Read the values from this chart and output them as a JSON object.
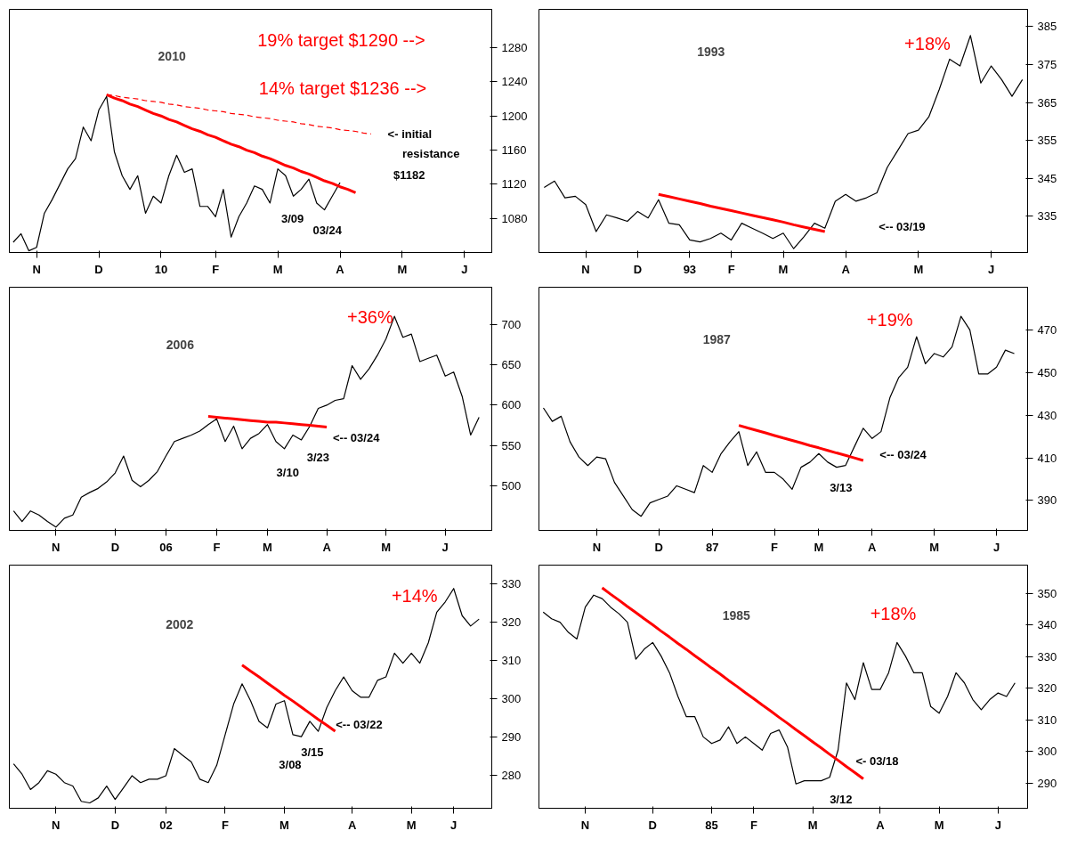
{
  "chart_data": [
    {
      "type": "line",
      "title": "2010",
      "ylim": [
        1040,
        1325
      ],
      "yticks": [
        1080,
        1120,
        1160,
        1200,
        1240,
        1280
      ],
      "categories": [
        null,
        null,
        null,
        "N",
        null,
        null,
        null,
        null,
        null,
        null,
        null,
        "D",
        null,
        null,
        null,
        null,
        null,
        null,
        null,
        "10",
        null,
        null,
        null,
        null,
        null,
        null,
        "F",
        null,
        null,
        null,
        null,
        null,
        null,
        null,
        "M",
        null,
        null,
        null,
        null,
        null,
        null,
        null,
        "A",
        null,
        null,
        null,
        null,
        null,
        null,
        null,
        "M",
        null,
        null,
        null,
        null,
        null,
        null,
        null,
        "J",
        null,
        null,
        null
      ],
      "series": [
        {
          "color": "#000000",
          "values": [
            1052,
            1062,
            1042,
            1046,
            1086,
            1102,
            1120,
            1138,
            1150,
            1187,
            1171,
            1207,
            1223,
            1158,
            1130,
            1114,
            1130,
            1086,
            1106,
            1098,
            1130,
            1154,
            1134,
            1138,
            1094,
            1094,
            1082,
            1114,
            1058,
            1082,
            1098,
            1118,
            1114,
            1098,
            1138,
            1130,
            1106,
            1114,
            1126,
            1098,
            1090,
            1106,
            1122,
            null,
            null,
            null,
            null,
            null,
            null,
            null,
            null,
            null,
            null,
            null,
            null,
            null,
            null,
            null,
            null,
            null,
            null,
            null
          ]
        },
        {
          "color": "#ff0000",
          "values": [
            null,
            null,
            null,
            null,
            null,
            null,
            null,
            null,
            null,
            null,
            null,
            null,
            1225,
            1221,
            1218,
            1214,
            1211,
            1207,
            1203,
            1200,
            1196,
            1193,
            1189,
            1185,
            1182,
            1178,
            1175,
            1171,
            1167,
            1164,
            1160,
            1157,
            1153,
            1150,
            1146,
            1142,
            1139,
            1135,
            1132,
            1128,
            1124,
            1121,
            1117,
            1114,
            1110,
            null,
            null,
            null,
            null,
            null,
            null,
            null,
            null,
            null,
            null,
            null,
            null,
            null,
            null,
            null,
            null,
            null
          ]
        },
        {
          "color": "#ff0000",
          "line_style": "dashed",
          "values": [
            null,
            null,
            null,
            null,
            null,
            null,
            null,
            null,
            null,
            null,
            null,
            null,
            1225,
            1224,
            1222,
            1221,
            1220,
            1218,
            1217,
            1216,
            1214,
            1213,
            1211,
            1210,
            1209,
            1207,
            1206,
            1205,
            1203,
            1202,
            1201,
            1199,
            1198,
            1197,
            1195,
            1194,
            1193,
            1191,
            1190,
            1188,
            1187,
            1186,
            1184,
            1183,
            1182,
            1180,
            1179,
            null,
            null,
            null,
            null,
            null,
            null,
            null,
            null,
            null,
            null,
            null,
            null,
            null,
            null,
            null
          ]
        }
      ],
      "annotations": [
        "19% target $1290 -->",
        "14% target $1236 -->",
        "<- initial",
        "resistance",
        "$1182",
        "3/09",
        "03/24"
      ]
    },
    {
      "type": "line",
      "title": "1993",
      "ylim": [
        325.5,
        389.5
      ],
      "yticks": [
        335,
        345,
        355,
        365,
        375,
        385
      ],
      "categories": [
        null,
        null,
        null,
        null,
        "N",
        null,
        null,
        null,
        null,
        "D",
        null,
        null,
        null,
        null,
        "93",
        null,
        null,
        null,
        "F",
        null,
        null,
        null,
        null,
        "M",
        null,
        null,
        null,
        null,
        null,
        "A",
        null,
        null,
        null,
        null,
        null,
        null,
        "M",
        null,
        null,
        null,
        null,
        null,
        null,
        "J",
        null,
        null,
        null
      ],
      "series": [
        {
          "color": "#000000",
          "values": [
            342.6,
            344.3,
            339.9,
            340.3,
            338.1,
            331.0,
            335.4,
            334.6,
            333.7,
            336.3,
            334.6,
            339.4,
            333.2,
            332.8,
            328.8,
            328.3,
            329.2,
            330.6,
            328.8,
            333.2,
            331.9,
            330.6,
            329.2,
            330.6,
            326.5,
            329.7,
            333.2,
            331.9,
            339.0,
            340.8,
            339.0,
            339.9,
            341.2,
            347.9,
            352.3,
            356.8,
            357.7,
            361.2,
            368.4,
            376.4,
            374.6,
            382.6,
            370.1,
            374.6,
            371.0,
            366.6,
            371.0
          ]
        },
        {
          "color": "#ff0000",
          "values": [
            null,
            null,
            null,
            null,
            null,
            null,
            null,
            null,
            null,
            null,
            null,
            340.8,
            340.2,
            339.6,
            339.0,
            338.4,
            337.7,
            337.1,
            336.5,
            335.9,
            335.3,
            334.7,
            334.1,
            333.5,
            332.8,
            332.2,
            331.6,
            331.0,
            null,
            null,
            null,
            null,
            null,
            null,
            null,
            null,
            null,
            null,
            null,
            null,
            null,
            null,
            null,
            null,
            null,
            null,
            null
          ]
        }
      ],
      "annotations": [
        "+18%",
        "<-- 03/19"
      ]
    },
    {
      "type": "line",
      "title": "2006",
      "ylim": [
        445,
        746
      ],
      "yticks": [
        500,
        550,
        600,
        650,
        700
      ],
      "categories": [
        null,
        null,
        null,
        null,
        null,
        "N",
        null,
        null,
        null,
        null,
        null,
        null,
        "D",
        null,
        null,
        null,
        null,
        null,
        "06",
        null,
        null,
        null,
        null,
        null,
        "F",
        null,
        null,
        null,
        null,
        null,
        "M",
        null,
        null,
        null,
        null,
        null,
        null,
        "A",
        null,
        null,
        null,
        null,
        null,
        null,
        "M",
        null,
        null,
        null,
        null,
        null,
        null,
        "J",
        null,
        null,
        null,
        null,
        null
      ],
      "series": [
        {
          "color": "#000000",
          "values": [
            469,
            456,
            469,
            464,
            456,
            449,
            460,
            464,
            486,
            492,
            497,
            505,
            516,
            537,
            507,
            499,
            507,
            518,
            537,
            555,
            559,
            563,
            568,
            576,
            583,
            555,
            574,
            546,
            559,
            565,
            576,
            555,
            546,
            563,
            557,
            574,
            596,
            600,
            606,
            608,
            649,
            632,
            645,
            662,
            682,
            710,
            684,
            688,
            654,
            658,
            662,
            636,
            641,
            611,
            563,
            585,
            null
          ]
        },
        {
          "color": "#ff0000",
          "values": [
            null,
            null,
            null,
            null,
            null,
            null,
            null,
            null,
            null,
            null,
            null,
            null,
            null,
            null,
            null,
            null,
            null,
            null,
            null,
            null,
            null,
            null,
            null,
            586,
            585,
            584,
            583,
            582,
            581,
            580,
            579,
            579,
            578,
            577,
            576,
            575,
            574,
            573,
            null,
            null,
            null,
            null,
            null,
            null,
            null,
            null,
            null,
            null,
            null,
            null,
            null,
            null,
            null,
            null,
            null,
            null,
            null
          ]
        }
      ],
      "annotations": [
        "+36%",
        "<-- 03/24",
        "3/23",
        "3/10"
      ]
    },
    {
      "type": "line",
      "title": "1987",
      "ylim": [
        376,
        490
      ],
      "yticks": [
        390,
        410,
        430,
        450,
        470
      ],
      "categories": [
        null,
        null,
        null,
        null,
        null,
        null,
        "N",
        null,
        null,
        null,
        null,
        null,
        null,
        "D",
        null,
        null,
        null,
        null,
        null,
        "87",
        null,
        null,
        null,
        null,
        null,
        null,
        "F",
        null,
        null,
        null,
        null,
        "M",
        null,
        null,
        null,
        null,
        null,
        "A",
        null,
        null,
        null,
        null,
        null,
        null,
        "M",
        null,
        null,
        null,
        null,
        null,
        null,
        "J",
        null,
        null,
        null
      ],
      "series": [
        {
          "color": "#000000",
          "values": [
            433.4,
            427.1,
            429.5,
            417.5,
            410.4,
            406.4,
            410.4,
            409.6,
            398.5,
            392.1,
            385.7,
            382.6,
            388.9,
            390.5,
            392.1,
            396.9,
            395.3,
            393.7,
            406.4,
            403.2,
            412.0,
            417.5,
            422.3,
            406.4,
            412.8,
            403.2,
            403.2,
            400.0,
            395.3,
            405.6,
            408.0,
            412.0,
            408.0,
            405.6,
            406.4,
            415.2,
            423.9,
            419.1,
            422.3,
            438.2,
            447.7,
            452.5,
            466.8,
            454.1,
            458.9,
            457.3,
            462.1,
            476.4,
            470.0,
            449.3,
            449.3,
            452.5,
            460.5,
            458.9,
            null
          ]
        },
        {
          "color": "#ff0000",
          "values": [
            null,
            null,
            null,
            null,
            null,
            null,
            null,
            null,
            null,
            null,
            null,
            null,
            null,
            null,
            null,
            null,
            null,
            null,
            null,
            null,
            null,
            null,
            425.2,
            424.0,
            422.9,
            421.7,
            420.5,
            419.3,
            418.2,
            417.0,
            415.8,
            414.7,
            413.5,
            412.3,
            411.2,
            410.0,
            408.8,
            null,
            null,
            null,
            null,
            null,
            null,
            null,
            null,
            null,
            null,
            null,
            null,
            null,
            null,
            null,
            null,
            null,
            null
          ]
        }
      ],
      "annotations": [
        "+19%",
        "<-- 03/24",
        "3/13"
      ]
    },
    {
      "type": "line",
      "title": "2002",
      "ylim": [
        271.5,
        335
      ],
      "yticks": [
        280,
        290,
        300,
        310,
        320,
        330
      ],
      "categories": [
        null,
        null,
        null,
        null,
        null,
        "N",
        null,
        null,
        null,
        null,
        null,
        null,
        "D",
        null,
        null,
        null,
        null,
        null,
        "02",
        null,
        null,
        null,
        null,
        null,
        null,
        "F",
        null,
        null,
        null,
        null,
        null,
        null,
        "M",
        null,
        null,
        null,
        null,
        null,
        null,
        null,
        "A",
        null,
        null,
        null,
        null,
        null,
        null,
        "M",
        null,
        null,
        null,
        null,
        "J",
        null,
        null,
        null,
        null
      ],
      "series": [
        {
          "color": "#000000",
          "values": [
            283.1,
            280.4,
            276.4,
            278.2,
            281.3,
            280.4,
            278.2,
            277.3,
            273.3,
            272.9,
            274.2,
            277.3,
            273.8,
            276.9,
            280.0,
            278.2,
            279.1,
            279.1,
            280.0,
            287.1,
            285.3,
            283.6,
            279.1,
            278.2,
            282.7,
            290.7,
            298.7,
            304.0,
            299.6,
            294.2,
            292.5,
            298.7,
            299.6,
            290.7,
            290.2,
            294.2,
            291.6,
            297.8,
            302.2,
            305.8,
            302.2,
            300.5,
            300.5,
            304.9,
            305.8,
            312.0,
            309.4,
            312.0,
            309.4,
            314.7,
            322.7,
            325.4,
            328.9,
            321.8,
            319.1,
            320.9,
            null
          ]
        },
        {
          "color": "#ff0000",
          "values": [
            null,
            null,
            null,
            null,
            null,
            null,
            null,
            null,
            null,
            null,
            null,
            null,
            null,
            null,
            null,
            null,
            null,
            null,
            null,
            null,
            null,
            null,
            null,
            null,
            null,
            null,
            null,
            308.9,
            307.3,
            305.8,
            304.2,
            302.6,
            301.0,
            299.5,
            297.9,
            296.3,
            294.7,
            293.2,
            291.6,
            null,
            null,
            null,
            null,
            null,
            null,
            null,
            null,
            null,
            null,
            null,
            null,
            null,
            null,
            null,
            null,
            null,
            null
          ]
        }
      ],
      "annotations": [
        "+14%",
        "<-- 03/22",
        "3/15",
        "3/08"
      ]
    },
    {
      "type": "line",
      "title": "1985",
      "ylim": [
        282,
        359
      ],
      "yticks": [
        290,
        300,
        310,
        320,
        330,
        340,
        350
      ],
      "categories": [
        null,
        null,
        null,
        null,
        null,
        "N",
        null,
        null,
        null,
        null,
        null,
        null,
        null,
        "D",
        null,
        null,
        null,
        null,
        null,
        null,
        "85",
        null,
        null,
        null,
        null,
        "F",
        null,
        null,
        null,
        null,
        null,
        null,
        "M",
        null,
        null,
        null,
        null,
        null,
        null,
        null,
        "A",
        null,
        null,
        null,
        null,
        null,
        null,
        "M",
        null,
        null,
        null,
        null,
        null,
        null,
        "J",
        null,
        null,
        null
      ],
      "series": [
        {
          "color": "#000000",
          "values": [
            344.1,
            342.0,
            340.9,
            337.7,
            335.6,
            345.7,
            349.5,
            348.4,
            345.7,
            343.6,
            340.9,
            329.2,
            332.4,
            334.5,
            330.2,
            324.9,
            317.4,
            311.0,
            311.0,
            304.6,
            302.5,
            303.6,
            307.8,
            302.5,
            304.6,
            302.5,
            300.4,
            305.7,
            306.8,
            301.4,
            289.7,
            290.7,
            290.7,
            290.7,
            291.8,
            300.4,
            321.7,
            316.4,
            328.1,
            319.6,
            319.6,
            324.9,
            334.5,
            330.2,
            324.9,
            324.9,
            314.2,
            312.1,
            317.4,
            324.9,
            321.7,
            316.4,
            313.2,
            316.4,
            318.5,
            317.4,
            321.7,
            null
          ]
        },
        {
          "color": "#ff0000",
          "values": [
            null,
            null,
            null,
            null,
            null,
            null,
            null,
            351.8,
            349.8,
            347.9,
            345.9,
            344.0,
            342.0,
            340.1,
            338.1,
            336.2,
            334.2,
            332.3,
            330.3,
            328.4,
            326.4,
            324.5,
            322.5,
            320.6,
            318.6,
            316.7,
            314.7,
            312.8,
            310.8,
            308.9,
            306.9,
            305.0,
            303.0,
            301.1,
            299.1,
            297.2,
            295.2,
            293.3,
            291.3,
            null,
            null,
            null,
            null,
            null,
            null,
            null,
            null,
            null,
            null,
            null,
            null,
            null,
            null,
            null,
            null,
            null,
            null,
            null
          ]
        }
      ],
      "annotations": [
        "+18%",
        "<- 03/18",
        "3/12"
      ]
    }
  ]
}
